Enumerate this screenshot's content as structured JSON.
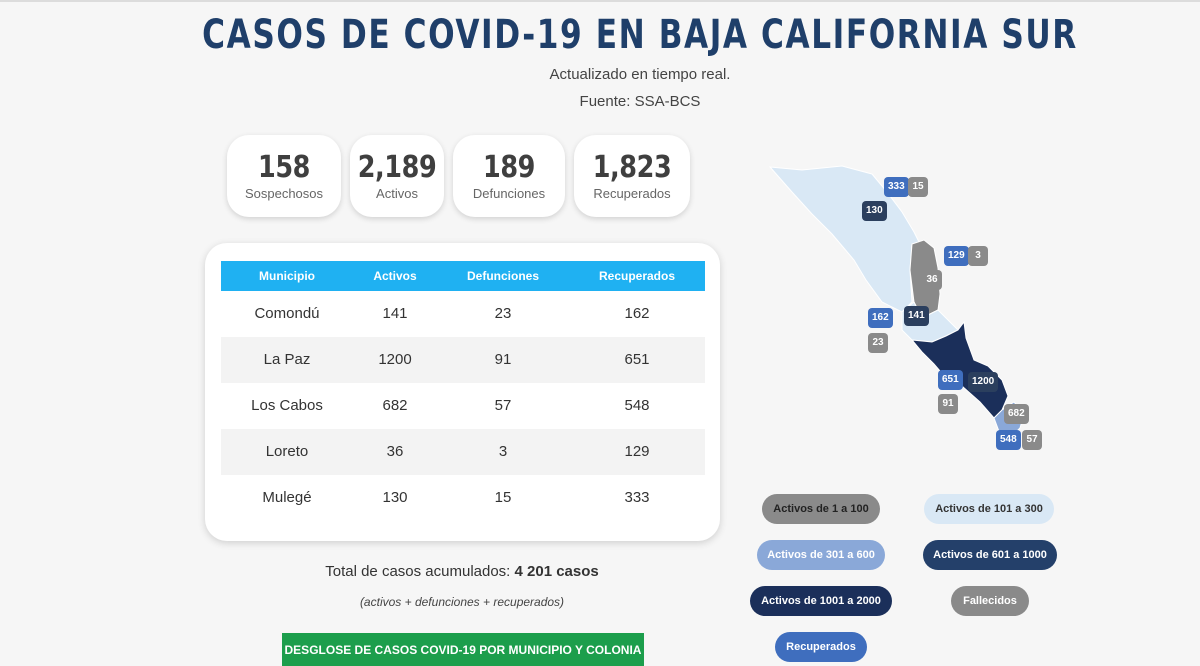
{
  "title": "CASOS DE COVID-19 EN BAJA CALIFORNIA SUR",
  "subtitle1": "Actualizado en tiempo real.",
  "subtitle2": "Fuente: SSA-BCS",
  "stats": [
    {
      "value": "158",
      "label": "Sospechosos"
    },
    {
      "value": "2,189",
      "label": "Activos"
    },
    {
      "value": "189",
      "label": "Defunciones"
    },
    {
      "value": "1,823",
      "label": "Recuperados"
    }
  ],
  "table": {
    "headers": [
      "Municipio",
      "Activos",
      "Defunciones",
      "Recuperados"
    ],
    "rows": [
      [
        "Comondú",
        "141",
        "23",
        "162"
      ],
      [
        "La Paz",
        "1200",
        "91",
        "651"
      ],
      [
        "Los Cabos",
        "682",
        "57",
        "548"
      ],
      [
        "Loreto",
        "36",
        "3",
        "129"
      ],
      [
        "Mulegé",
        "130",
        "15",
        "333"
      ]
    ]
  },
  "total": {
    "label": "Total de casos acumulados:",
    "value": "4 201 casos"
  },
  "formula": "(activos + defunciones + recuperados)",
  "button_label": "DESGLOSE DE CASOS COVID-19 POR MUNICIPIO Y COLONIA",
  "map_badges": {
    "mulege_rec": "333",
    "mulege_def": "15",
    "mulege_act": "130",
    "loreto_rec": "129",
    "loreto_def": "3",
    "loreto_act": "36",
    "comondu_rec": "162",
    "comondu_def": "23",
    "comondu_act": "141",
    "lapaz_rec": "651",
    "lapaz_def": "91",
    "lapaz_act": "1200",
    "loscabos_rec": "548",
    "loscabos_def": "57",
    "loscabos_act": "682"
  },
  "legend": [
    "Activos de 1 a 100",
    "Activos de 101 a 300",
    "Activos de 301 a 600",
    "Activos de 601 a 1000",
    "Activos de 1001 a 2000",
    "Fallecidos",
    "Recuperados"
  ],
  "colors": {
    "header_blue": "#1fb1f2",
    "title_navy": "#1f3f6a",
    "button_green": "#1c9e4c",
    "range_1_100": "#8a8a8a",
    "range_101_300": "#d9e8f5",
    "range_301_600": "#8aa8d8",
    "range_601_1000": "#24406a",
    "range_1001_2000": "#1b2f5a",
    "fallecidos": "#8a8a8a",
    "recuperados": "#3f6ebe"
  }
}
